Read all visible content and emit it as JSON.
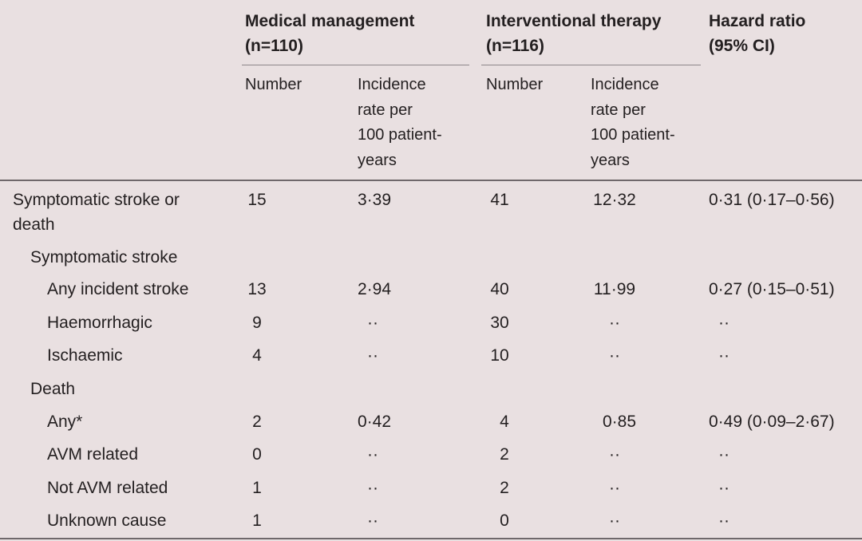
{
  "header": {
    "group1": "Medical management\n(n=110)",
    "group2": "Interventional therapy\n(n=116)",
    "hazard": "Hazard ratio\n(95% CI)",
    "sub_number": "Number",
    "sub_rate": "Incidence\nrate per\n100 patient-\nyears"
  },
  "rows": [
    {
      "label": "Symptomatic stroke or\ndeath",
      "mm_n": "15",
      "mm_r": "3·39",
      "it_n": "41",
      "it_r": "12·32",
      "hr": "0·31 (0·17–0·56)"
    },
    {
      "label": "Symptomatic stroke",
      "mm_n": "",
      "mm_r": "",
      "it_n": "",
      "it_r": "",
      "hr": ""
    },
    {
      "label": "Any incident stroke",
      "mm_n": "13",
      "mm_r": "2·94",
      "it_n": "40",
      "it_r": "11·99",
      "hr": "0·27 (0·15–0·51)"
    },
    {
      "label": "Haemorrhagic",
      "mm_n": "9",
      "mm_r": "··",
      "it_n": "30",
      "it_r": "··",
      "hr": "··"
    },
    {
      "label": "Ischaemic",
      "mm_n": "4",
      "mm_r": "··",
      "it_n": "10",
      "it_r": "··",
      "hr": "··"
    },
    {
      "label": "Death",
      "mm_n": "",
      "mm_r": "",
      "it_n": "",
      "it_r": "",
      "hr": ""
    },
    {
      "label": "Any*",
      "mm_n": "2",
      "mm_r": "0·42",
      "it_n": "4",
      "it_r": "0·85",
      "hr": "0·49 (0·09–2·67)"
    },
    {
      "label": "AVM related",
      "mm_n": "0",
      "mm_r": "··",
      "it_n": "2",
      "it_r": "··",
      "hr": "··"
    },
    {
      "label": "Not AVM related",
      "mm_n": "1",
      "mm_r": "··",
      "it_n": "2",
      "it_r": "··",
      "hr": "··"
    },
    {
      "label": "Unknown cause",
      "mm_n": "1",
      "mm_r": "··",
      "it_n": "0",
      "it_r": "··",
      "hr": "··"
    }
  ]
}
